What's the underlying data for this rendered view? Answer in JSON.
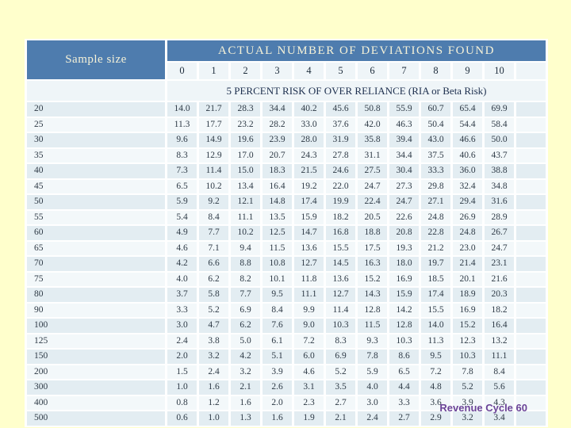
{
  "page": {
    "background_color": "#FFFFCC",
    "footer": "Revenue Cycle 60",
    "footer_color": "#6B4397"
  },
  "table": {
    "corner_header": "Sample size",
    "main_header": "ACTUAL NUMBER OF DEVIATIONS FOUND",
    "sub_header": "5 PERCENT RISK OF OVER RELIANCE (RIA or Beta Risk)",
    "header_bg": "#4E7CAE",
    "header_text_color": "#F6F2D8",
    "row_stripe_dark": "#E3EDF2",
    "row_stripe_light": "#F3F8FA",
    "deviation_columns": [
      "0",
      "1",
      "2",
      "3",
      "4",
      "5",
      "6",
      "7",
      "8",
      "9",
      "10",
      ""
    ]
  },
  "chart_data": {
    "type": "table",
    "title": "ACTUAL NUMBER OF DEVIATIONS FOUND",
    "subtitle": "5 PERCENT RISK OF OVER RELIANCE (RIA or Beta Risk)",
    "row_header": "Sample size",
    "columns": [
      "0",
      "1",
      "2",
      "3",
      "4",
      "5",
      "6",
      "7",
      "8",
      "9",
      "10"
    ],
    "rows": [
      {
        "sample_size": "20",
        "values": [
          "14.0",
          "21.7",
          "28.3",
          "34.4",
          "40.2",
          "45.6",
          "50.8",
          "55.9",
          "60.7",
          "65.4",
          "69.9"
        ]
      },
      {
        "sample_size": "25",
        "values": [
          "11.3",
          "17.7",
          "23.2",
          "28.2",
          "33.0",
          "37.6",
          "42.0",
          "46.3",
          "50.4",
          "54.4",
          "58.4"
        ]
      },
      {
        "sample_size": "30",
        "values": [
          "9.6",
          "14.9",
          "19.6",
          "23.9",
          "28.0",
          "31.9",
          "35.8",
          "39.4",
          "43.0",
          "46.6",
          "50.0"
        ]
      },
      {
        "sample_size": "35",
        "values": [
          "8.3",
          "12.9",
          "17.0",
          "20.7",
          "24.3",
          "27.8",
          "31.1",
          "34.4",
          "37.5",
          "40.6",
          "43.7"
        ]
      },
      {
        "sample_size": "40",
        "values": [
          "7.3",
          "11.4",
          "15.0",
          "18.3",
          "21.5",
          "24.6",
          "27.5",
          "30.4",
          "33.3",
          "36.0",
          "38.8"
        ]
      },
      {
        "sample_size": "45",
        "values": [
          "6.5",
          "10.2",
          "13.4",
          "16.4",
          "19.2",
          "22.0",
          "24.7",
          "27.3",
          "29.8",
          "32.4",
          "34.8"
        ]
      },
      {
        "sample_size": "50",
        "values": [
          "5.9",
          "9.2",
          "12.1",
          "14.8",
          "17.4",
          "19.9",
          "22.4",
          "24.7",
          "27.1",
          "29.4",
          "31.6"
        ]
      },
      {
        "sample_size": "55",
        "values": [
          "5.4",
          "8.4",
          "11.1",
          "13.5",
          "15.9",
          "18.2",
          "20.5",
          "22.6",
          "24.8",
          "26.9",
          "28.9"
        ]
      },
      {
        "sample_size": "60",
        "values": [
          "4.9",
          "7.7",
          "10.2",
          "12.5",
          "14.7",
          "16.8",
          "18.8",
          "20.8",
          "22.8",
          "24.8",
          "26.7"
        ]
      },
      {
        "sample_size": "65",
        "values": [
          "4.6",
          "7.1",
          "9.4",
          "11.5",
          "13.6",
          "15.5",
          "17.5",
          "19.3",
          "21.2",
          "23.0",
          "24.7"
        ]
      },
      {
        "sample_size": "70",
        "values": [
          "4.2",
          "6.6",
          "8.8",
          "10.8",
          "12.7",
          "14.5",
          "16.3",
          "18.0",
          "19.7",
          "21.4",
          "23.1"
        ]
      },
      {
        "sample_size": "75",
        "values": [
          "4.0",
          "6.2",
          "8.2",
          "10.1",
          "11.8",
          "13.6",
          "15.2",
          "16.9",
          "18.5",
          "20.1",
          "21.6"
        ]
      },
      {
        "sample_size": "80",
        "values": [
          "3.7",
          "5.8",
          "7.7",
          "9.5",
          "11.1",
          "12.7",
          "14.3",
          "15.9",
          "17.4",
          "18.9",
          "20.3"
        ]
      },
      {
        "sample_size": "90",
        "values": [
          "3.3",
          "5.2",
          "6.9",
          "8.4",
          "9.9",
          "11.4",
          "12.8",
          "14.2",
          "15.5",
          "16.9",
          "18.2"
        ]
      },
      {
        "sample_size": "100",
        "values": [
          "3.0",
          "4.7",
          "6.2",
          "7.6",
          "9.0",
          "10.3",
          "11.5",
          "12.8",
          "14.0",
          "15.2",
          "16.4"
        ]
      },
      {
        "sample_size": "125",
        "values": [
          "2.4",
          "3.8",
          "5.0",
          "6.1",
          "7.2",
          "8.3",
          "9.3",
          "10.3",
          "11.3",
          "12.3",
          "13.2"
        ]
      },
      {
        "sample_size": "150",
        "values": [
          "2.0",
          "3.2",
          "4.2",
          "5.1",
          "6.0",
          "6.9",
          "7.8",
          "8.6",
          "9.5",
          "10.3",
          "11.1"
        ]
      },
      {
        "sample_size": "200",
        "values": [
          "1.5",
          "2.4",
          "3.2",
          "3.9",
          "4.6",
          "5.2",
          "5.9",
          "6.5",
          "7.2",
          "7.8",
          "8.4"
        ]
      },
      {
        "sample_size": "300",
        "values": [
          "1.0",
          "1.6",
          "2.1",
          "2.6",
          "3.1",
          "3.5",
          "4.0",
          "4.4",
          "4.8",
          "5.2",
          "5.6"
        ]
      },
      {
        "sample_size": "400",
        "values": [
          "0.8",
          "1.2",
          "1.6",
          "2.0",
          "2.3",
          "2.7",
          "3.0",
          "3.3",
          "3.6",
          "3.9",
          "4.3"
        ]
      },
      {
        "sample_size": "500",
        "values": [
          "0.6",
          "1.0",
          "1.3",
          "1.6",
          "1.9",
          "2.1",
          "2.4",
          "2.7",
          "2.9",
          "3.2",
          "3.4"
        ]
      }
    ]
  }
}
